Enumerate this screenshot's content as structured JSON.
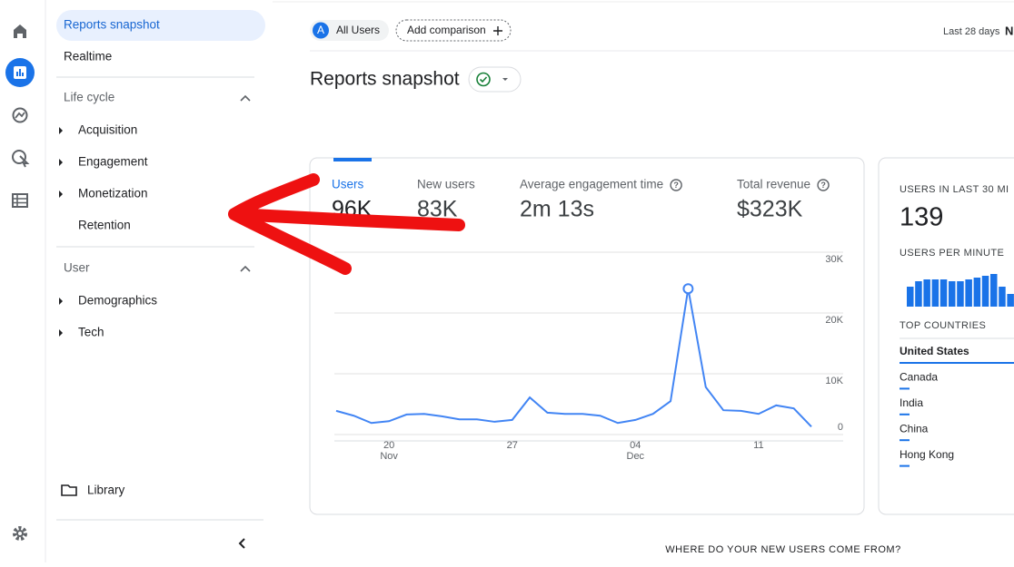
{
  "menu": {
    "active": "Reports snapshot",
    "realtime": "Realtime",
    "sections": [
      {
        "title": "Life cycle",
        "items": [
          "Acquisition",
          "Engagement",
          "Monetization",
          "Retention"
        ]
      },
      {
        "title": "User",
        "items": [
          "Demographics",
          "Tech"
        ]
      }
    ],
    "library": "Library"
  },
  "header": {
    "segment_badge": "A",
    "segment": "All Users",
    "add_comparison": "Add comparison",
    "date_range": "Last 28 days",
    "date_range_cut": "N"
  },
  "page_title": "Reports snapshot",
  "metrics": [
    {
      "label": "Users",
      "value": "96K"
    },
    {
      "label": "New users",
      "value": "83K"
    },
    {
      "label": "Average engagement time",
      "value": "2m 13s"
    },
    {
      "label": "Total revenue",
      "value": "$323K"
    }
  ],
  "chart_data": {
    "type": "line",
    "categories": [
      null,
      null,
      null,
      {
        "day": "20",
        "month": "Nov"
      },
      null,
      null,
      null,
      null,
      null,
      null,
      {
        "day": "27"
      },
      null,
      null,
      null,
      null,
      null,
      null,
      {
        "day": "04",
        "month": "Dec"
      },
      null,
      null,
      null,
      null,
      null,
      null,
      {
        "day": "11"
      },
      null,
      null,
      null
    ],
    "values": [
      3900,
      3100,
      1900,
      2200,
      3300,
      3400,
      3000,
      2500,
      2500,
      2100,
      2400,
      6100,
      3600,
      3400,
      3400,
      3100,
      1900,
      2400,
      3400,
      5500,
      24000,
      7800,
      4000,
      3900,
      3400,
      4800,
      4300,
      1300
    ],
    "color": "#4285f4",
    "ylim": [
      0,
      30000
    ],
    "yticks": [
      0,
      {
        "value": 10000,
        "label": "10K"
      },
      {
        "value": 20000,
        "label": "20K"
      },
      {
        "value": 30000,
        "label": "30K"
      }
    ],
    "grid": true
  },
  "realtime": {
    "title": "USERS IN LAST 30 MI",
    "value": "139",
    "per_minute_title": "USERS PER MINUTE",
    "per_minute": [
      22,
      28,
      30,
      30,
      30,
      28,
      28,
      30,
      32,
      34,
      36,
      22,
      14
    ],
    "countries_title": "TOP COUNTRIES",
    "countries": [
      "United States",
      "Canada",
      "India",
      "China",
      "Hong Kong"
    ]
  },
  "footer_title": "WHERE DO YOUR NEW USERS COME FROM?"
}
